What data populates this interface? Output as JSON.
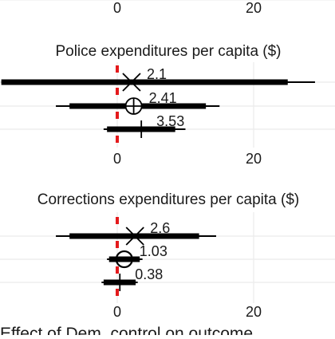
{
  "chart_data": [
    {
      "type": "forest",
      "title": "",
      "xlabel": "",
      "ylabel": "",
      "xlim": [
        -17,
        33
      ],
      "x_ticks": [
        0,
        20
      ],
      "grid": true,
      "reference_line": 0,
      "rows": [],
      "partial": true
    },
    {
      "type": "forest",
      "title": "Police expenditures per capita ($)",
      "xlabel": "",
      "ylabel": "",
      "xlim": [
        -17,
        33
      ],
      "x_ticks": [
        0,
        20
      ],
      "grid": true,
      "reference_line": 0,
      "rows": [
        {
          "marker": "x",
          "estimate": 2.1,
          "label": "2.1",
          "ci_inner": [
            -17,
            25
          ],
          "ci_outer": [
            -17,
            29
          ]
        },
        {
          "marker": "circle-plus",
          "estimate": 2.41,
          "label": "2.41",
          "ci_inner": [
            -7,
            13
          ],
          "ci_outer": [
            -9,
            15
          ]
        },
        {
          "marker": "plus",
          "estimate": 3.53,
          "label": "3.53",
          "ci_inner": [
            -1.5,
            8.5
          ],
          "ci_outer": [
            -2,
            10
          ]
        }
      ]
    },
    {
      "type": "forest",
      "title": "Corrections expenditures per capita ($)",
      "xlabel": "Effect of Dem. control on outcome",
      "ylabel": "",
      "xlim": [
        -17,
        33
      ],
      "x_ticks": [
        0,
        20
      ],
      "grid": true,
      "reference_line": 0,
      "rows": [
        {
          "marker": "x",
          "estimate": 2.6,
          "label": "2.6",
          "ci_inner": [
            -7,
            12
          ],
          "ci_outer": [
            -9,
            14.5
          ]
        },
        {
          "marker": "circle",
          "estimate": 1.03,
          "label": "1.03",
          "ci_inner": [
            -1.2,
            3.3
          ],
          "ci_outer": [
            -1.5,
            3.7
          ]
        },
        {
          "marker": "plus",
          "estimate": 0.38,
          "label": "0.38",
          "ci_inner": [
            -2,
            2.7
          ],
          "ci_outer": [
            -2.3,
            3
          ]
        }
      ]
    }
  ],
  "colors": {
    "line": "#000000",
    "reference": "#e41a1c",
    "grid": "#ebebeb",
    "text": "#1a1a1a"
  }
}
